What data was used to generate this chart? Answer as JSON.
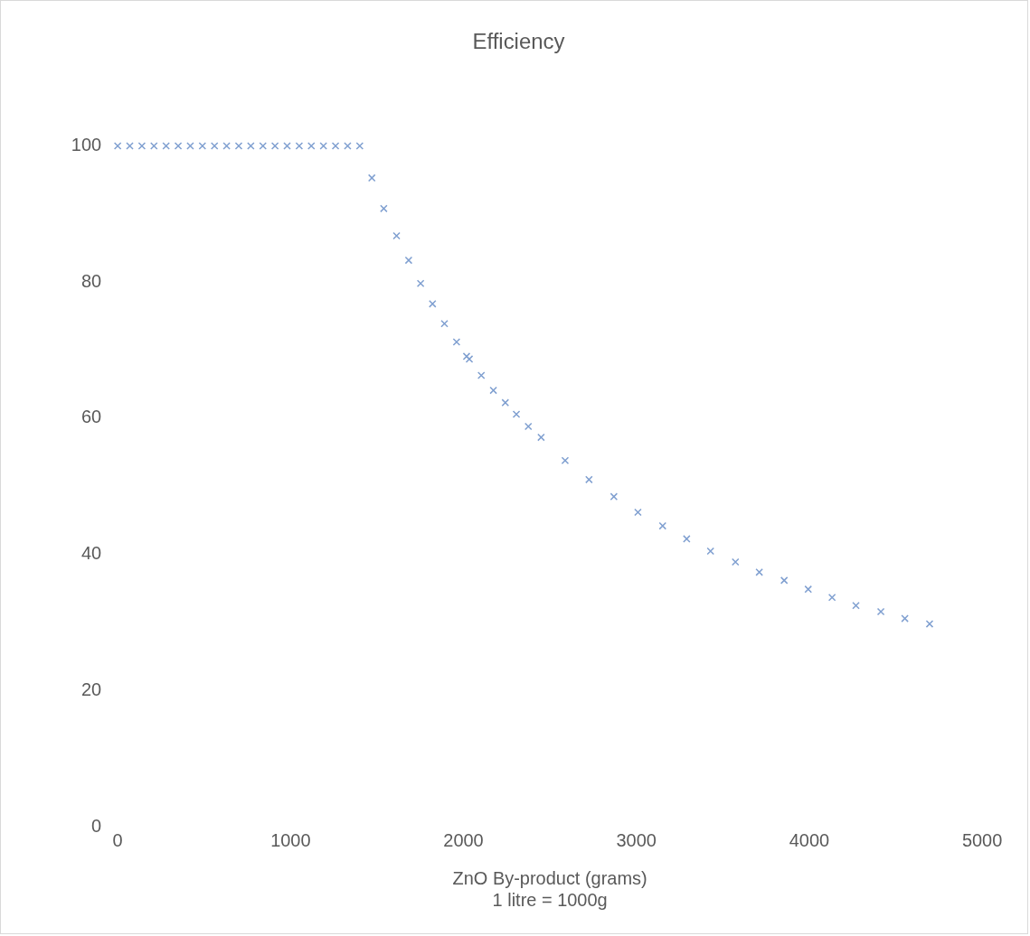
{
  "chart_data": {
    "type": "scatter",
    "title": "Efficiency",
    "xlabel": "ZnO By-product (grams)\n1 litre = 1000g",
    "x": [
      0,
      70,
      140,
      210,
      280,
      350,
      420,
      490,
      560,
      630,
      700,
      770,
      840,
      910,
      980,
      1050,
      1120,
      1190,
      1260,
      1330,
      1400,
      1470,
      1539,
      1613,
      1683,
      1752,
      1821,
      1890,
      1960,
      2018,
      2034,
      2103,
      2173,
      2242,
      2306,
      2375,
      2449,
      2588,
      2726,
      2870,
      3009,
      3152,
      3291,
      3429,
      3573,
      3711,
      3855,
      3994,
      4132,
      4270,
      4414,
      4553,
      4696
    ],
    "values": [
      100,
      100,
      100,
      100,
      100,
      100,
      100,
      100,
      100,
      100,
      100,
      100,
      100,
      100,
      100,
      100,
      100,
      100,
      100,
      100,
      100,
      95.3,
      90.8,
      86.8,
      83.2,
      79.8,
      76.8,
      73.9,
      71.2,
      69.1,
      68.7,
      66.3,
      64.1,
      62.3,
      60.6,
      58.8,
      57.2,
      53.8,
      51.0,
      48.5,
      46.2,
      44.2,
      42.3,
      40.5,
      38.9,
      37.4,
      36.2,
      34.9,
      33.7,
      32.5,
      31.6,
      30.6,
      29.8
    ],
    "color": "#7f9fd0",
    "marker": "cross",
    "xlim": [
      0,
      5000
    ],
    "xticks": [
      0,
      1000,
      2000,
      3000,
      4000,
      5000
    ],
    "ylim": [
      0,
      100
    ],
    "yticks": [
      0,
      20,
      40,
      60,
      80,
      100
    ],
    "grid": false,
    "legend": false
  }
}
